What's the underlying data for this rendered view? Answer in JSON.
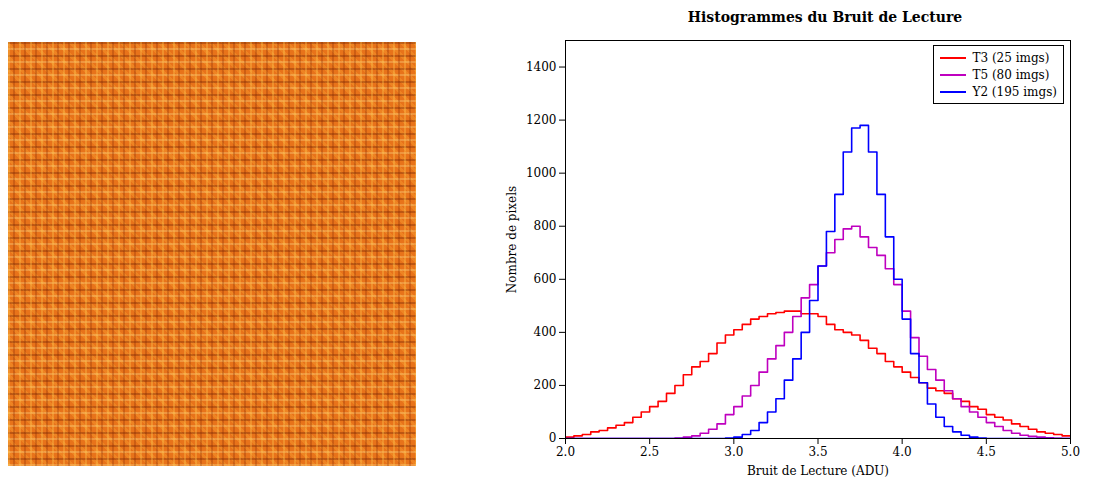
{
  "chart_data": {
    "type": "histogram",
    "title": "Histogrammes du Bruit de Lecture",
    "xlabel": "Bruit de Lecture (ADU)",
    "ylabel": "Nombre de pixels",
    "bins": [
      2,
      2.05,
      2.1,
      2.15,
      2.2,
      2.25,
      2.3,
      2.35,
      2.4,
      2.45,
      2.5,
      2.55,
      2.6,
      2.65,
      2.7,
      2.75,
      2.8,
      2.85,
      2.9,
      2.95,
      3,
      3.05,
      3.1,
      3.15,
      3.2,
      3.25,
      3.3,
      3.35,
      3.4,
      3.45,
      3.5,
      3.55,
      3.6,
      3.65,
      3.7,
      3.75,
      3.8,
      3.85,
      3.9,
      3.95,
      4,
      4.05,
      4.1,
      4.15,
      4.2,
      4.25,
      4.3,
      4.35,
      4.4,
      4.45,
      4.5,
      4.55,
      4.6,
      4.65,
      4.7,
      4.75,
      4.8,
      4.85,
      4.9,
      4.95,
      5
    ],
    "series": [
      {
        "name": "T3 (25 imgs)",
        "color": "#ff0000",
        "values": [
          5,
          10,
          15,
          25,
          30,
          40,
          50,
          60,
          80,
          100,
          120,
          140,
          170,
          200,
          240,
          270,
          290,
          320,
          360,
          390,
          410,
          430,
          450,
          460,
          470,
          475,
          480,
          480,
          470,
          470,
          460,
          430,
          410,
          400,
          390,
          370,
          340,
          320,
          290,
          270,
          250,
          230,
          210,
          190,
          180,
          170,
          150,
          140,
          120,
          110,
          90,
          80,
          70,
          55,
          45,
          35,
          25,
          20,
          15,
          10
        ]
      },
      {
        "name": "T5 (80 imgs)",
        "color": "#bf00bf",
        "values": [
          0,
          0,
          0,
          0,
          0,
          0,
          0,
          0,
          0,
          0,
          0,
          0,
          0,
          2,
          5,
          10,
          20,
          35,
          55,
          90,
          120,
          160,
          200,
          250,
          300,
          350,
          400,
          460,
          530,
          580,
          650,
          700,
          750,
          790,
          800,
          760,
          720,
          690,
          640,
          580,
          480,
          380,
          310,
          260,
          220,
          180,
          150,
          120,
          100,
          80,
          60,
          45,
          30,
          20,
          12,
          8,
          5,
          3,
          1,
          0
        ]
      },
      {
        "name": "Y2 (195 imgs)",
        "color": "#0000ff",
        "values": [
          0,
          0,
          0,
          0,
          0,
          0,
          0,
          0,
          0,
          0,
          0,
          0,
          0,
          0,
          0,
          0,
          0,
          0,
          0,
          2,
          5,
          15,
          30,
          60,
          100,
          150,
          220,
          300,
          400,
          520,
          650,
          780,
          920,
          1080,
          1170,
          1180,
          1080,
          920,
          760,
          600,
          450,
          320,
          210,
          130,
          80,
          45,
          25,
          12,
          5,
          2,
          0,
          0,
          0,
          0,
          0,
          0,
          0,
          0,
          0,
          0
        ]
      }
    ],
    "xlim": [
      2,
      5
    ],
    "ylim": [
      0,
      1500
    ],
    "xticks": [
      {
        "value": 2,
        "label": "2.0"
      },
      {
        "value": 2.5,
        "label": "2.5"
      },
      {
        "value": 3,
        "label": "3.0"
      },
      {
        "value": 3.5,
        "label": "3.5"
      },
      {
        "value": 4,
        "label": "4.0"
      },
      {
        "value": 4.5,
        "label": "4.5"
      },
      {
        "value": 5,
        "label": "5.0"
      }
    ],
    "yticks": [
      0,
      200,
      400,
      600,
      800,
      1000,
      1200,
      1400
    ],
    "legend": "upper right",
    "grid": false
  }
}
